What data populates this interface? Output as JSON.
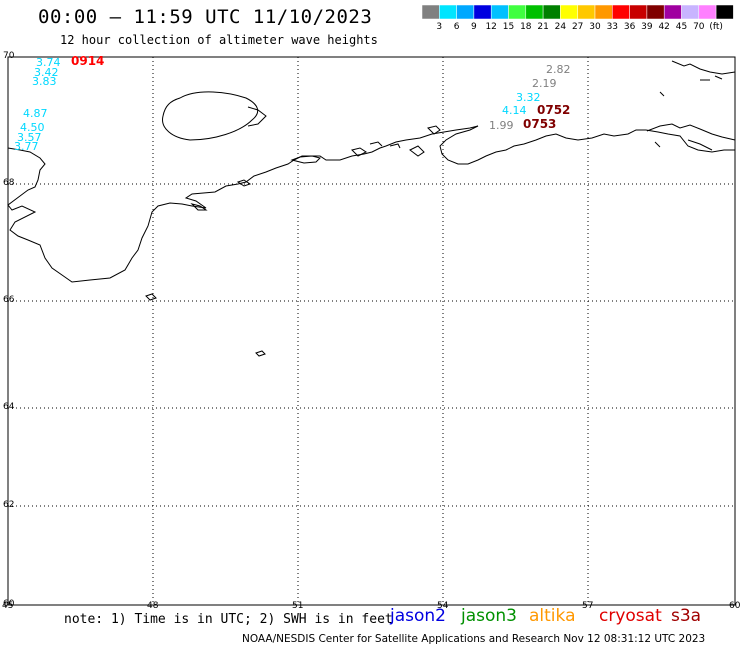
{
  "header": {
    "title": "00:00 – 11:59 UTC 11/10/2023",
    "subtitle": "12 hour collection of altimeter wave heights"
  },
  "color_scale": {
    "colors": [
      "#808080",
      "#00e5ff",
      "#00a8ff",
      "#0000e0",
      "#00c0ff",
      "#40ff40",
      "#00c000",
      "#008000",
      "#ffff00",
      "#ffc800",
      "#ff9800",
      "#ff0000",
      "#c80000",
      "#800000",
      "#a000a0",
      "#c8b4ff",
      "#ff80ff",
      "#000000"
    ],
    "labels": [
      "3",
      "6",
      "9",
      "12",
      "15",
      "18",
      "21",
      "24",
      "27",
      "30",
      "33",
      "36",
      "39",
      "42",
      "45",
      "70",
      "(ft)"
    ]
  },
  "axes": {
    "lat_labels": [
      "70",
      "68",
      "66",
      "64",
      "62",
      "60"
    ],
    "lon_labels": [
      "45",
      "48",
      "51",
      "54",
      "57",
      "60"
    ]
  },
  "observations": [
    {
      "value": "3.74",
      "color": "#00d8ff"
    },
    {
      "value": "3.42",
      "color": "#00d8ff"
    },
    {
      "value": "3.83",
      "color": "#00d8ff"
    },
    {
      "value": "4.87",
      "color": "#00d8ff"
    },
    {
      "value": "4.50",
      "color": "#00d8ff"
    },
    {
      "value": "3.57",
      "color": "#00d8ff"
    },
    {
      "value": "3.77",
      "color": "#00d8ff"
    },
    {
      "value": "2.82",
      "color": "#808080"
    },
    {
      "value": "2.19",
      "color": "#808080"
    },
    {
      "value": "3.32",
      "color": "#00d8ff"
    },
    {
      "value": "4.14",
      "color": "#00d8ff"
    },
    {
      "value": "1.99",
      "color": "#808080"
    }
  ],
  "pass_times": [
    {
      "time": "0914",
      "color": "#ff0000"
    },
    {
      "time": "0752",
      "color": "#800000"
    },
    {
      "time": "0753",
      "color": "#800000"
    }
  ],
  "note": "note: 1) Time is in UTC; 2) SWH is in feet",
  "satellites": [
    {
      "name": "jason2",
      "color": "#0000e0"
    },
    {
      "name": "jason3",
      "color": "#009000"
    },
    {
      "name": "altika",
      "color": "#ff9800"
    },
    {
      "name": "cryosat",
      "color": "#e00000"
    },
    {
      "name": "s3a",
      "color": "#a00000"
    }
  ],
  "footer": "NOAA/NESDIS Center for Satellite Applications and Research   Nov 12 08:31:12 UTC 2023"
}
